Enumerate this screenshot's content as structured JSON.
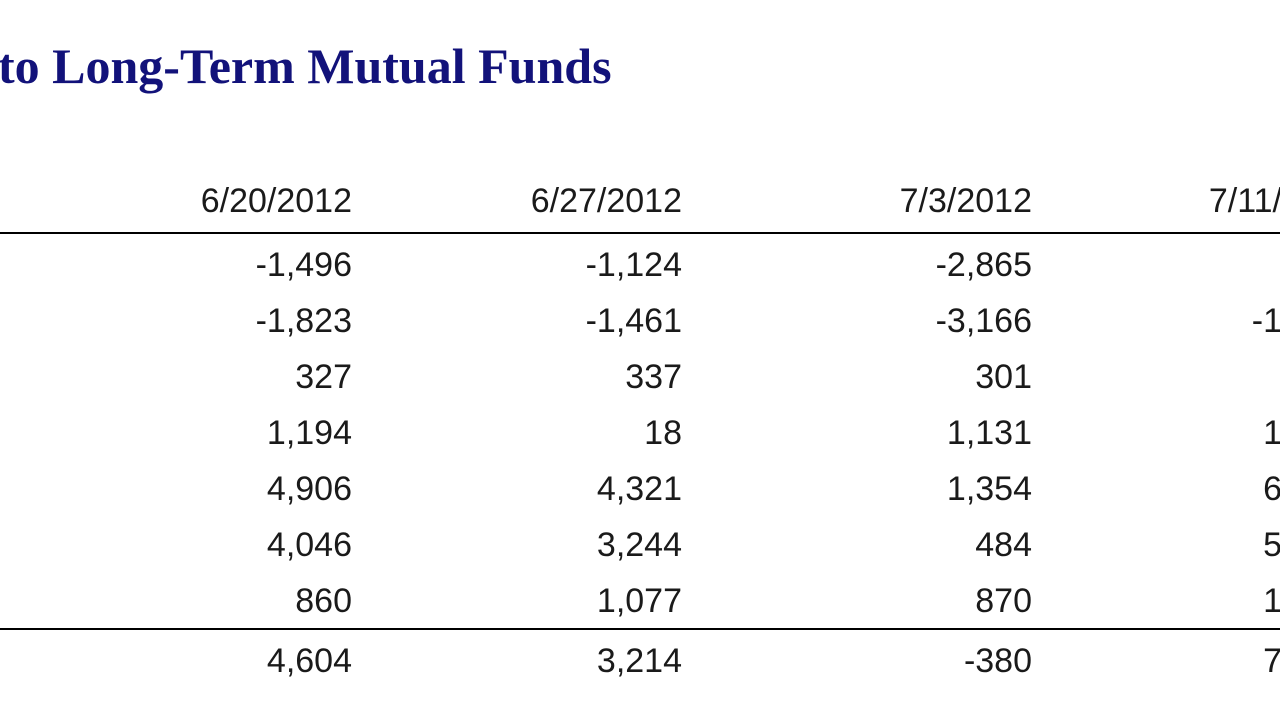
{
  "title": "to Long-Term Mutual Funds",
  "table": {
    "headers": [
      "6/20/2012",
      "6/27/2012",
      "7/3/2012",
      "7/11/"
    ],
    "rows": [
      [
        "-1,496",
        "-1,124",
        "-2,865",
        null
      ],
      [
        "-1,823",
        "-1,461",
        "-3,166",
        "-1"
      ],
      [
        "327",
        "337",
        "301",
        null
      ],
      [
        "1,194",
        "18",
        "1,131",
        "1"
      ],
      [
        "4,906",
        "4,321",
        "1,354",
        "6"
      ],
      [
        "4,046",
        "3,244",
        "484",
        "5"
      ],
      [
        "860",
        "1,077",
        "870",
        "1"
      ],
      [
        "4,604",
        "3,214",
        "-380",
        "7"
      ]
    ]
  }
}
